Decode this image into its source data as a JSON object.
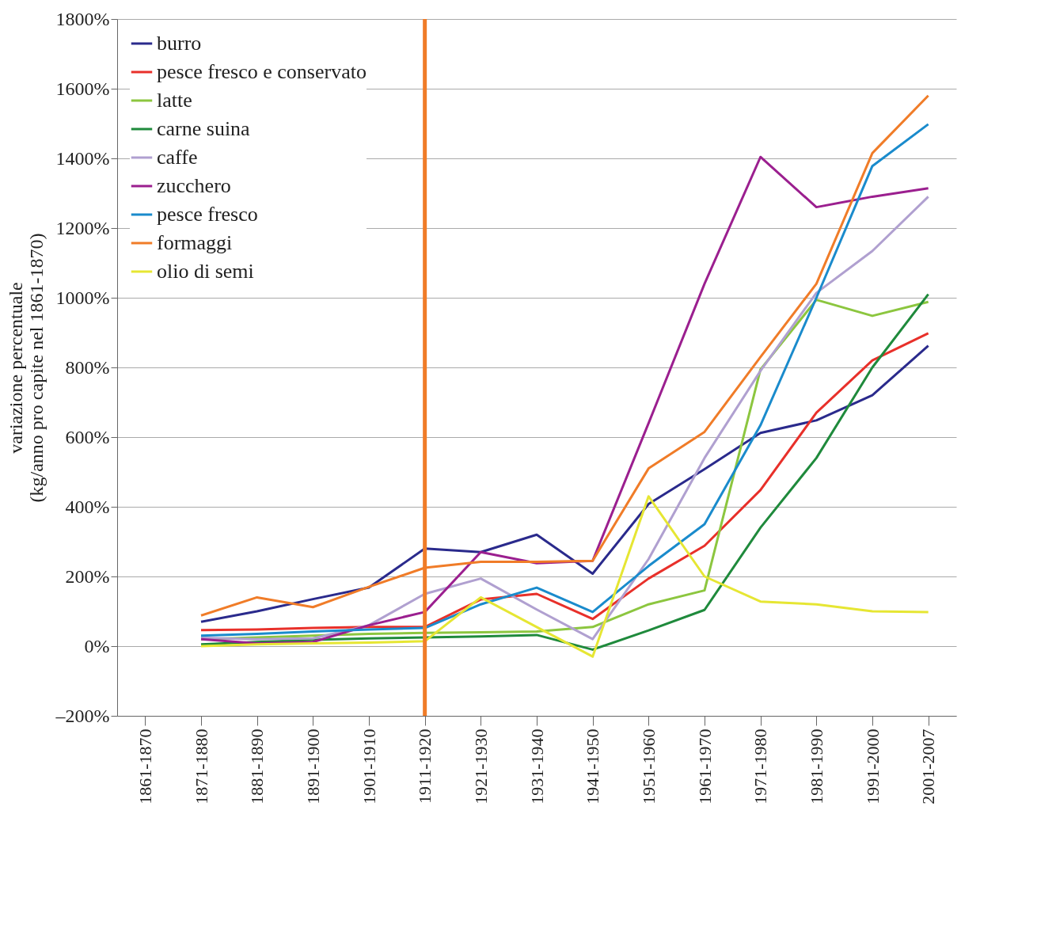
{
  "chart_data": {
    "type": "line",
    "xlabel": null,
    "ylabel": "variazione percentuale\n(kg/anno pro capite nel 1861-1870)",
    "categories": [
      "1861-1870",
      "1871-1880",
      "1881-1890",
      "1891-1900",
      "1901-1910",
      "1911-1920",
      "1921-1930",
      "1931-1940",
      "1941-1950",
      "1951-1960",
      "1961-1970",
      "1971-1980",
      "1981-1990",
      "1991-2000",
      "2001-2007"
    ],
    "series": [
      {
        "name": "burro",
        "color": "#2a2a8c",
        "values": [
          null,
          70,
          100,
          135,
          168,
          280,
          270,
          320,
          208,
          408,
          508,
          612,
          648,
          720,
          862
        ]
      },
      {
        "name": "pesce fresco e conservato",
        "color": "#e8302a",
        "values": [
          null,
          46,
          48,
          52,
          55,
          55,
          134,
          150,
          78,
          194,
          288,
          448,
          670,
          820,
          898
        ]
      },
      {
        "name": "latte",
        "color": "#8cc63f",
        "values": [
          null,
          20,
          25,
          30,
          35,
          38,
          40,
          42,
          55,
          120,
          160,
          794,
          994,
          948,
          988
        ]
      },
      {
        "name": "carne suina",
        "color": "#1f8a3c",
        "values": [
          null,
          5,
          12,
          18,
          22,
          25,
          28,
          32,
          -10,
          45,
          104,
          340,
          540,
          800,
          1010
        ]
      },
      {
        "name": "caffe",
        "color": "#b0a0d0",
        "values": [
          null,
          24,
          20,
          22,
          60,
          150,
          194,
          105,
          20,
          250,
          540,
          790,
          1014,
          1134,
          1290
        ]
      },
      {
        "name": "zucchero",
        "color": "#9b1f8f",
        "values": [
          null,
          20,
          8,
          12,
          60,
          98,
          270,
          238,
          245,
          640,
          1040,
          1404,
          1260,
          1290,
          1314
        ]
      },
      {
        "name": "pesce fresco",
        "color": "#1a8bcc",
        "values": [
          null,
          30,
          35,
          42,
          48,
          52,
          120,
          168,
          98,
          230,
          350,
          634,
          1000,
          1378,
          1498
        ]
      },
      {
        "name": "formaggi",
        "color": "#f07c28",
        "values": [
          null,
          88,
          140,
          112,
          170,
          225,
          242,
          242,
          245,
          510,
          615,
          830,
          1040,
          1415,
          1580
        ]
      },
      {
        "name": "olio di semi",
        "color": "#e6e633",
        "values": [
          null,
          0,
          5,
          8,
          10,
          14,
          140,
          55,
          -30,
          430,
          200,
          128,
          120,
          100,
          98
        ]
      }
    ],
    "ylim": [
      -200,
      1800
    ],
    "yticks": [
      {
        "value": -200,
        "label": "–200%"
      },
      {
        "value": 0,
        "label": "0%"
      },
      {
        "value": 200,
        "label": "200%"
      },
      {
        "value": 400,
        "label": "400%"
      },
      {
        "value": 600,
        "label": "600%"
      },
      {
        "value": 800,
        "label": "800%"
      },
      {
        "value": 1000,
        "label": "1000%"
      },
      {
        "value": 1200,
        "label": "1200%"
      },
      {
        "value": 1400,
        "label": "1400%"
      },
      {
        "value": 1600,
        "label": "1600%"
      },
      {
        "value": 1800,
        "label": "1800%"
      }
    ],
    "ref_lines": [
      {
        "axis": "x",
        "value": "1911-1920",
        "color": "#f07c28"
      }
    ],
    "grid": "y",
    "legend": "top left",
    "marker": "none",
    "line_style": "solid"
  }
}
